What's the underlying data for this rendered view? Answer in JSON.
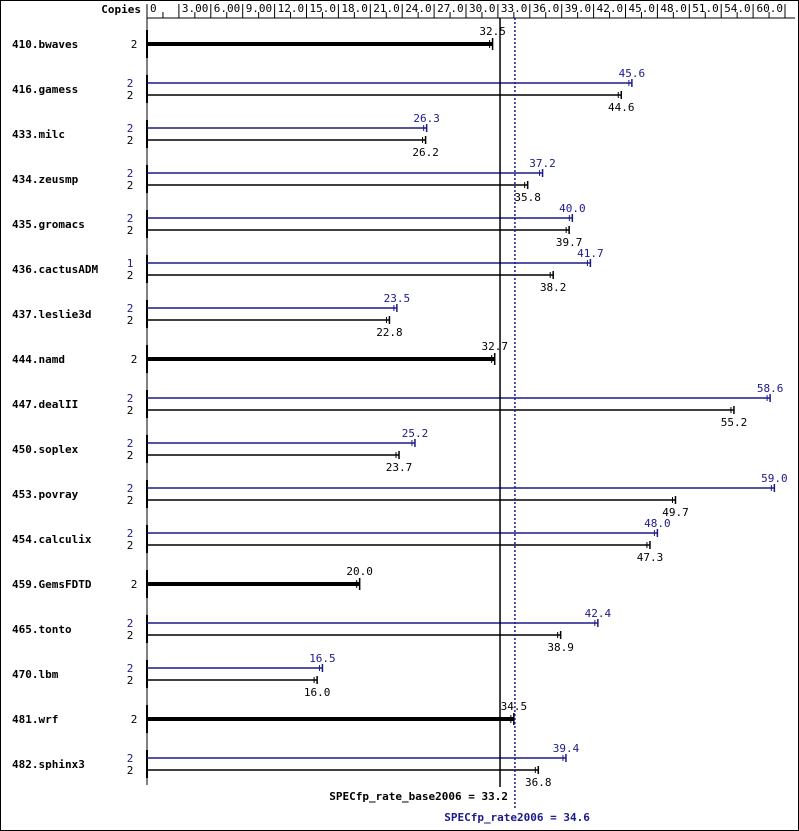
{
  "chart_data": {
    "type": "bar",
    "orientation": "horizontal",
    "copies_header": "Copies",
    "x_ticks": [
      "0",
      "3.00",
      "6.00",
      "9.00",
      "12.0",
      "15.0",
      "18.0",
      "21.0",
      "24.0",
      "27.0",
      "30.0",
      "33.0",
      "36.0",
      "39.0",
      "42.0",
      "45.0",
      "48.0",
      "51.0",
      "54.0",
      "60.0"
    ],
    "xlim": [
      0,
      60
    ],
    "colors": {
      "base": "#000000",
      "peak": "#1a1a8c"
    },
    "benchmarks": [
      {
        "name": "410.bwaves",
        "combined": true,
        "base": {
          "copies": "2",
          "value": 32.5,
          "label": "32.5"
        }
      },
      {
        "name": "416.gamess",
        "peak": {
          "copies": "2",
          "value": 45.6,
          "label": "45.6"
        },
        "base": {
          "copies": "2",
          "value": 44.6,
          "label": "44.6"
        }
      },
      {
        "name": "433.milc",
        "peak": {
          "copies": "2",
          "value": 26.3,
          "label": "26.3"
        },
        "base": {
          "copies": "2",
          "value": 26.2,
          "label": "26.2"
        }
      },
      {
        "name": "434.zeusmp",
        "peak": {
          "copies": "2",
          "value": 37.2,
          "label": "37.2"
        },
        "base": {
          "copies": "2",
          "value": 35.8,
          "label": "35.8"
        }
      },
      {
        "name": "435.gromacs",
        "peak": {
          "copies": "2",
          "value": 40.0,
          "label": "40.0"
        },
        "base": {
          "copies": "2",
          "value": 39.7,
          "label": "39.7"
        }
      },
      {
        "name": "436.cactusADM",
        "peak": {
          "copies": "1",
          "value": 41.7,
          "label": "41.7"
        },
        "base": {
          "copies": "2",
          "value": 38.2,
          "label": "38.2"
        }
      },
      {
        "name": "437.leslie3d",
        "peak": {
          "copies": "2",
          "value": 23.5,
          "label": "23.5"
        },
        "base": {
          "copies": "2",
          "value": 22.8,
          "label": "22.8"
        }
      },
      {
        "name": "444.namd",
        "combined": true,
        "base": {
          "copies": "2",
          "value": 32.7,
          "label": "32.7"
        }
      },
      {
        "name": "447.dealII",
        "peak": {
          "copies": "2",
          "value": 58.6,
          "label": "58.6"
        },
        "base": {
          "copies": "2",
          "value": 55.2,
          "label": "55.2"
        }
      },
      {
        "name": "450.soplex",
        "peak": {
          "copies": "2",
          "value": 25.2,
          "label": "25.2"
        },
        "base": {
          "copies": "2",
          "value": 23.7,
          "label": "23.7"
        }
      },
      {
        "name": "453.povray",
        "peak": {
          "copies": "2",
          "value": 59.0,
          "label": "59.0"
        },
        "base": {
          "copies": "2",
          "value": 49.7,
          "label": "49.7"
        }
      },
      {
        "name": "454.calculix",
        "peak": {
          "copies": "2",
          "value": 48.0,
          "label": "48.0"
        },
        "base": {
          "copies": "2",
          "value": 47.3,
          "label": "47.3"
        }
      },
      {
        "name": "459.GemsFDTD",
        "combined": true,
        "base": {
          "copies": "2",
          "value": 20.0,
          "label": "20.0"
        }
      },
      {
        "name": "465.tonto",
        "peak": {
          "copies": "2",
          "value": 42.4,
          "label": "42.4"
        },
        "base": {
          "copies": "2",
          "value": 38.9,
          "label": "38.9"
        }
      },
      {
        "name": "470.lbm",
        "peak": {
          "copies": "2",
          "value": 16.5,
          "label": "16.5"
        },
        "base": {
          "copies": "2",
          "value": 16.0,
          "label": "16.0"
        }
      },
      {
        "name": "481.wrf",
        "combined": true,
        "base": {
          "copies": "2",
          "value": 34.5,
          "label": "34.5"
        }
      },
      {
        "name": "482.sphinx3",
        "peak": {
          "copies": "2",
          "value": 39.4,
          "label": "39.4"
        },
        "base": {
          "copies": "2",
          "value": 36.8,
          "label": "36.8"
        }
      }
    ],
    "reference_lines": {
      "base": {
        "value": 33.2,
        "label": "SPECfp_rate_base2006 = 33.2"
      },
      "peak": {
        "value": 34.6,
        "label": "SPECfp_rate2006 = 34.6"
      }
    }
  }
}
